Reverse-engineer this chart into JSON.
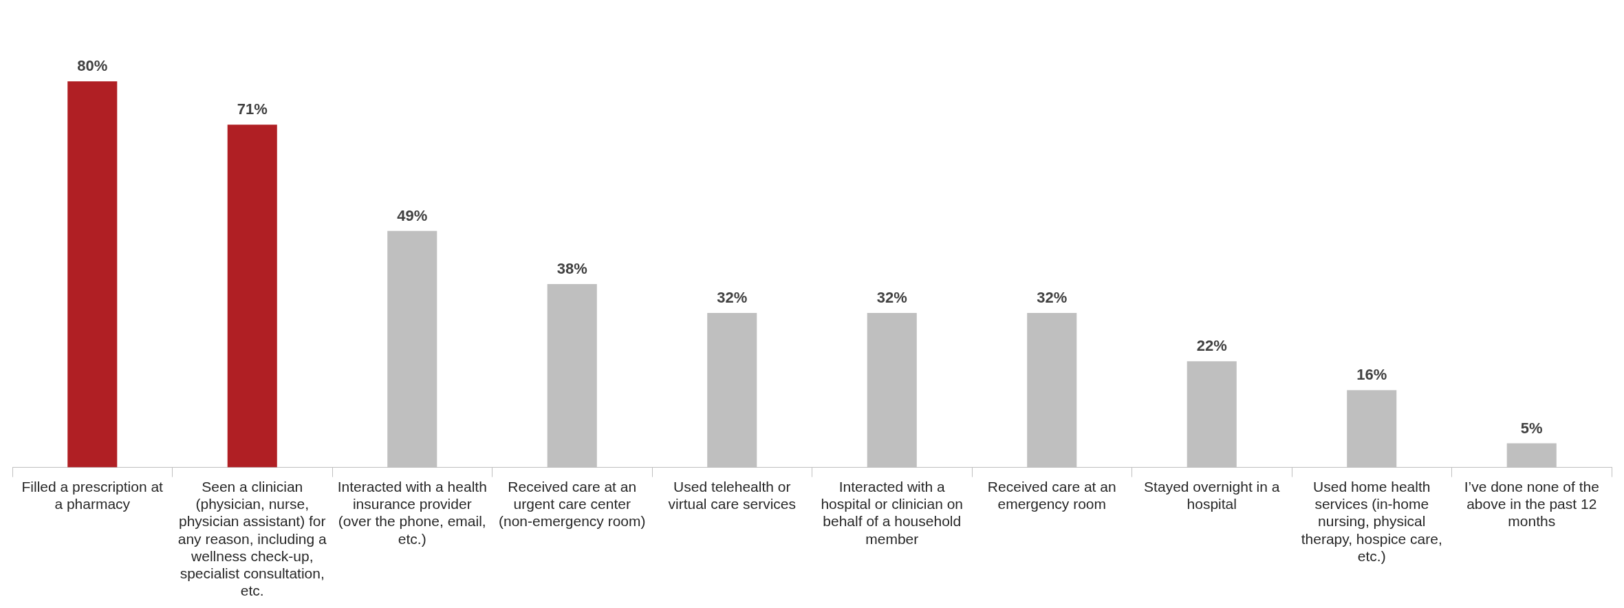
{
  "chart_data": {
    "type": "bar",
    "categories": [
      "Filled a prescription at a pharmacy",
      "Seen a clinician (physician, nurse, physician assistant) for any reason, including a wellness check-up, specialist consultation, etc.",
      "Interacted with a health insurance provider (over the phone, email, etc.)",
      "Received care at an urgent care center (non-emergency room)",
      "Used telehealth or virtual care services",
      "Interacted with a hospital or clinician on behalf of a household member",
      "Received care at an emergency room",
      "Stayed overnight in a hospital",
      "Used home health services (in-home nursing, physical therapy, hospice care, etc.)",
      "I’ve done none of the above in the past 12 months"
    ],
    "values": [
      80,
      71,
      49,
      38,
      32,
      32,
      32,
      22,
      16,
      5
    ],
    "colors": [
      "#b01f24",
      "#b01f24",
      "#bfbfbf",
      "#bfbfbf",
      "#bfbfbf",
      "#bfbfbf",
      "#bfbfbf",
      "#bfbfbf",
      "#bfbfbf",
      "#bfbfbf"
    ],
    "value_labels": [
      "80%",
      "71%",
      "49%",
      "38%",
      "32%",
      "32%",
      "32%",
      "22%",
      "16%",
      "5%"
    ],
    "grid": false,
    "legend": false
  }
}
